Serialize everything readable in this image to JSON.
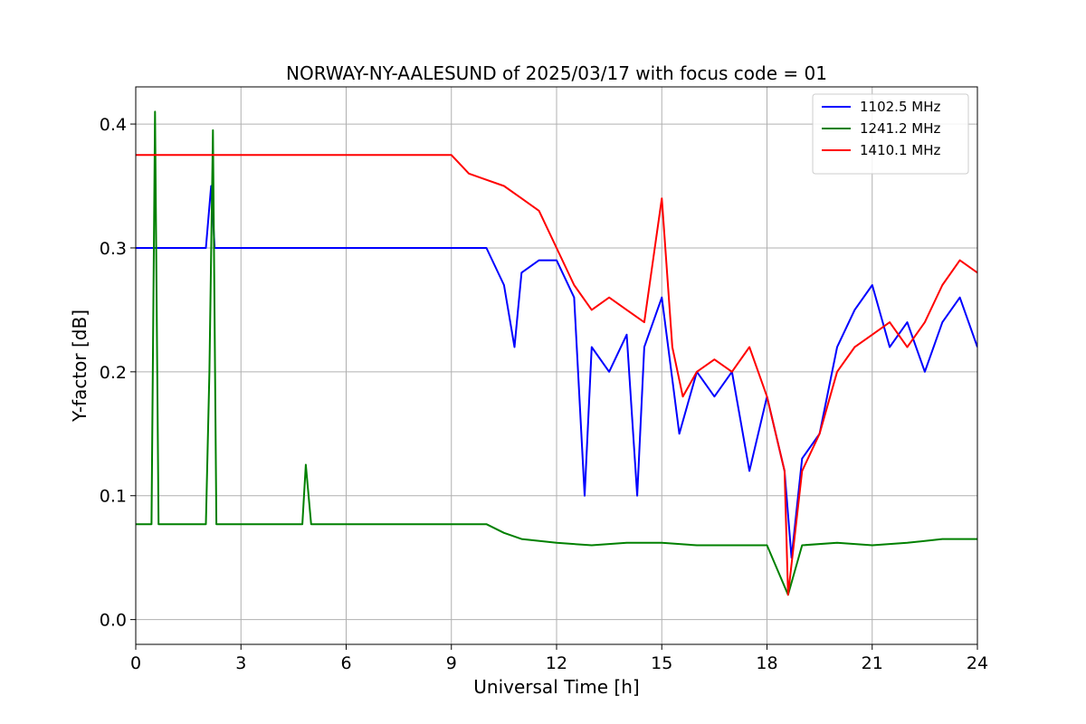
{
  "chart_data": {
    "type": "line",
    "title": "NORWAY-NY-AALESUND of 2025/03/17 with focus code = 01",
    "xlabel": "Universal Time [h]",
    "ylabel": "Y-factor [dB]",
    "xlim": [
      0,
      24
    ],
    "ylim": [
      -0.02,
      0.43
    ],
    "xticks": [
      0,
      3,
      6,
      9,
      12,
      15,
      18,
      21,
      24
    ],
    "yticks": [
      0.0,
      0.1,
      0.2,
      0.3,
      0.4
    ],
    "xtick_labels": [
      "0",
      "3",
      "6",
      "9",
      "12",
      "15",
      "18",
      "21",
      "24"
    ],
    "ytick_labels": [
      "0.0",
      "0.1",
      "0.2",
      "0.3",
      "0.4"
    ],
    "grid": true,
    "legend_position": "top-right",
    "series": [
      {
        "name": "1102.5 MHz",
        "color": "#0000ff",
        "x": [
          0,
          0.5,
          1,
          1.5,
          2,
          2.15,
          2.25,
          2.5,
          3,
          4,
          5,
          6,
          7,
          8,
          9,
          10,
          10.5,
          10.8,
          11,
          11.5,
          12,
          12.5,
          12.8,
          13,
          13.5,
          14,
          14.3,
          14.5,
          15,
          15.5,
          16,
          16.5,
          17,
          17.5,
          18,
          18.5,
          18.7,
          19,
          19.5,
          20,
          20.5,
          21,
          21.5,
          22,
          22.5,
          23,
          23.5,
          24
        ],
        "y": [
          0.3,
          0.3,
          0.3,
          0.3,
          0.3,
          0.35,
          0.3,
          0.3,
          0.3,
          0.3,
          0.3,
          0.3,
          0.3,
          0.3,
          0.3,
          0.3,
          0.27,
          0.22,
          0.28,
          0.29,
          0.29,
          0.26,
          0.1,
          0.22,
          0.2,
          0.23,
          0.1,
          0.22,
          0.26,
          0.15,
          0.2,
          0.18,
          0.2,
          0.12,
          0.18,
          0.12,
          0.05,
          0.13,
          0.15,
          0.22,
          0.25,
          0.27,
          0.22,
          0.24,
          0.2,
          0.24,
          0.26,
          0.22
        ]
      },
      {
        "name": "1241.2 MHz",
        "color": "#008000",
        "x": [
          0,
          0.45,
          0.55,
          0.65,
          1,
          1.5,
          2,
          2.1,
          2.2,
          2.3,
          2.5,
          3,
          4,
          4.75,
          4.85,
          5,
          6,
          7,
          8,
          9,
          10,
          10.5,
          11,
          12,
          13,
          14,
          15,
          16,
          17,
          18,
          18.6,
          19,
          20,
          21,
          22,
          23,
          24
        ],
        "y": [
          0.077,
          0.077,
          0.41,
          0.077,
          0.077,
          0.077,
          0.077,
          0.2,
          0.395,
          0.077,
          0.077,
          0.077,
          0.077,
          0.077,
          0.125,
          0.077,
          0.077,
          0.077,
          0.077,
          0.077,
          0.077,
          0.07,
          0.065,
          0.062,
          0.06,
          0.062,
          0.062,
          0.06,
          0.06,
          0.06,
          0.02,
          0.06,
          0.062,
          0.06,
          0.062,
          0.065,
          0.065
        ]
      },
      {
        "name": "1410.1 MHz",
        "color": "#ff0000",
        "x": [
          0,
          1,
          2,
          3,
          4,
          5,
          6,
          7,
          8,
          9,
          9.5,
          10,
          10.5,
          11,
          11.5,
          12,
          12.5,
          13,
          13.5,
          14,
          14.5,
          14.8,
          15,
          15.3,
          15.6,
          16,
          16.5,
          17,
          17.5,
          18,
          18.5,
          18.6,
          19,
          19.5,
          20,
          20.5,
          21,
          21.5,
          22,
          22.5,
          23,
          23.5,
          24
        ],
        "y": [
          0.375,
          0.375,
          0.375,
          0.375,
          0.375,
          0.375,
          0.375,
          0.375,
          0.375,
          0.375,
          0.36,
          0.355,
          0.35,
          0.34,
          0.33,
          0.3,
          0.27,
          0.25,
          0.26,
          0.25,
          0.24,
          0.3,
          0.34,
          0.22,
          0.18,
          0.2,
          0.21,
          0.2,
          0.22,
          0.18,
          0.12,
          0.02,
          0.12,
          0.15,
          0.2,
          0.22,
          0.23,
          0.24,
          0.22,
          0.24,
          0.27,
          0.29,
          0.28
        ]
      }
    ]
  }
}
